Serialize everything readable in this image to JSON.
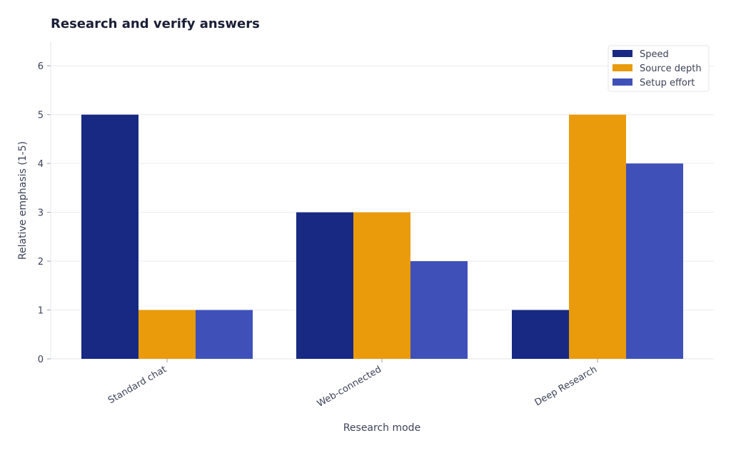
{
  "chart_data": {
    "type": "bar",
    "title": "Research and verify answers",
    "xlabel": "Research mode",
    "ylabel": "Relative emphasis (1-5)",
    "categories": [
      "Standard chat",
      "Web-connected",
      "Deep Research"
    ],
    "series": [
      {
        "name": "Speed",
        "values": [
          5,
          3,
          1
        ],
        "color": "#172983"
      },
      {
        "name": "Source depth",
        "values": [
          1,
          3,
          5
        ],
        "color": "#e99b0b"
      },
      {
        "name": "Setup effort",
        "values": [
          1,
          2,
          4
        ],
        "color": "#3f51b8"
      }
    ],
    "ylim": [
      0,
      6.5
    ],
    "yticks": [
      0,
      1,
      2,
      3,
      4,
      5,
      6
    ],
    "grid": true,
    "legend_position": "top-right"
  }
}
